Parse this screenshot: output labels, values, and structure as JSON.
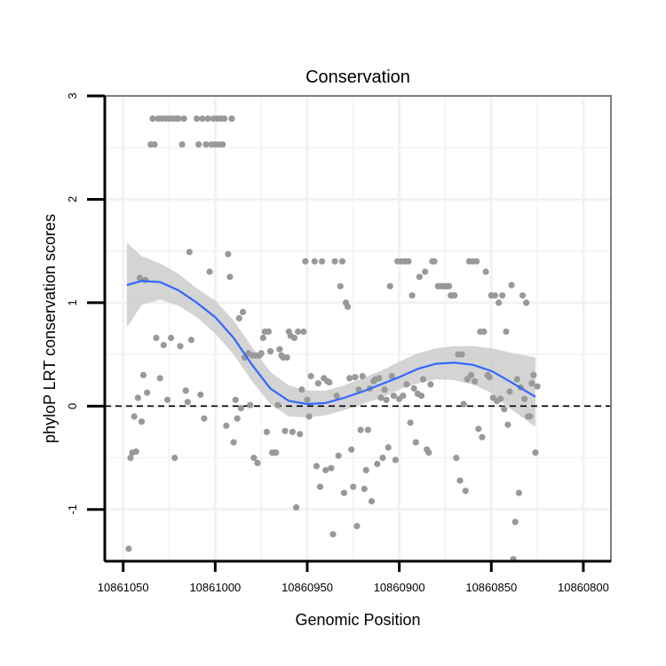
{
  "chart_data": {
    "type": "scatter",
    "title": "Conservation",
    "xlabel": "Genomic Position",
    "ylabel": "phyloP LRT conservation scores",
    "x_reversed": true,
    "xlim": [
      10861060,
      10860785
    ],
    "ylim": [
      -1.5,
      3
    ],
    "x_ticks": [
      10861050,
      10861000,
      10860950,
      10860900,
      10860850,
      10860800
    ],
    "x_tick_labels": [
      "10861050",
      "10861000",
      "10860950",
      "10860900",
      "10860850",
      "10860800"
    ],
    "y_ticks": [
      -1,
      0,
      1,
      2,
      3
    ],
    "y_tick_labels": [
      "-1",
      "0",
      "1",
      "2",
      "3"
    ],
    "reference_line": {
      "y": 0,
      "style": "dashed"
    },
    "grid": true,
    "colors": {
      "points": "#999999",
      "smooth": "#3366ff",
      "band": "#cccccc",
      "panel_border": "#7f7f7f",
      "grid": "#f2f2f2"
    },
    "points": [
      [
        10861047,
        -1.38
      ],
      [
        10861046,
        -0.5
      ],
      [
        10861045,
        -0.45
      ],
      [
        10861044,
        -0.1
      ],
      [
        10861043,
        -0.44
      ],
      [
        10861042,
        0.08
      ],
      [
        10861041,
        1.24
      ],
      [
        10861040,
        -0.15
      ],
      [
        10861039,
        0.3
      ],
      [
        10861038,
        1.22
      ],
      [
        10861037,
        0.13
      ],
      [
        10861035,
        2.53
      ],
      [
        10861034,
        2.78
      ],
      [
        10861033,
        2.53
      ],
      [
        10861032,
        0.66
      ],
      [
        10861031,
        2.78
      ],
      [
        10861030,
        0.27
      ],
      [
        10861029,
        2.78
      ],
      [
        10861028,
        0.59
      ],
      [
        10861027,
        2.78
      ],
      [
        10861026,
        0.06
      ],
      [
        10861025,
        2.78
      ],
      [
        10861024,
        0.66
      ],
      [
        10861023,
        2.78
      ],
      [
        10861022,
        -0.5
      ],
      [
        10861021,
        2.78
      ],
      [
        10861020,
        2.78
      ],
      [
        10861019,
        0.58
      ],
      [
        10861018,
        2.53
      ],
      [
        10861017,
        2.78
      ],
      [
        10861016,
        0.15
      ],
      [
        10861015,
        0.04
      ],
      [
        10861014,
        1.49
      ],
      [
        10861013,
        0.64
      ],
      [
        10861010,
        2.78
      ],
      [
        10861009,
        2.53
      ],
      [
        10861008,
        0.11
      ],
      [
        10861007,
        2.78
      ],
      [
        10861006,
        -0.12
      ],
      [
        10861005,
        2.53
      ],
      [
        10861004,
        2.78
      ],
      [
        10861003,
        1.3
      ],
      [
        10861002,
        2.53
      ],
      [
        10861001,
        2.78
      ],
      [
        10861000,
        2.53
      ],
      [
        10860999,
        2.78
      ],
      [
        10860998,
        2.53
      ],
      [
        10860997,
        2.78
      ],
      [
        10860996,
        2.53
      ],
      [
        10860995,
        2.78
      ],
      [
        10860994,
        -0.19
      ],
      [
        10860993,
        1.47
      ],
      [
        10860992,
        1.25
      ],
      [
        10860991,
        2.78
      ],
      [
        10860990,
        -0.35
      ],
      [
        10860989,
        0.06
      ],
      [
        10860988,
        -0.12
      ],
      [
        10860987,
        0.85
      ],
      [
        10860986,
        -0.02
      ],
      [
        10860985,
        0.91
      ],
      [
        10860984,
        0.47
      ],
      [
        10860982,
        0.51
      ],
      [
        10860981,
        0.01
      ],
      [
        10860980,
        0.49
      ],
      [
        10860979,
        -0.5
      ],
      [
        10860978,
        0.49
      ],
      [
        10860977,
        -0.55
      ],
      [
        10860976,
        0.49
      ],
      [
        10860975,
        0.51
      ],
      [
        10860974,
        0.66
      ],
      [
        10860973,
        0.72
      ],
      [
        10860972,
        -0.25
      ],
      [
        10860971,
        0.72
      ],
      [
        10860970,
        0.53
      ],
      [
        10860969,
        -0.45
      ],
      [
        10860968,
        -0.45
      ],
      [
        10860967,
        -0.45
      ],
      [
        10860966,
        0.01
      ],
      [
        10860965,
        0.55
      ],
      [
        10860964,
        0.49
      ],
      [
        10860963,
        0.47
      ],
      [
        10860962,
        -0.24
      ],
      [
        10860961,
        0.47
      ],
      [
        10860960,
        0.72
      ],
      [
        10860959,
        0.68
      ],
      [
        10860958,
        -0.25
      ],
      [
        10860957,
        0.66
      ],
      [
        10860956,
        -0.98
      ],
      [
        10860955,
        0.72
      ],
      [
        10860954,
        -0.27
      ],
      [
        10860953,
        0.16
      ],
      [
        10860952,
        0.72
      ],
      [
        10860951,
        1.4
      ],
      [
        10860950,
        0.06
      ],
      [
        10860949,
        -0.1
      ],
      [
        10860948,
        0.29
      ],
      [
        10860946,
        1.4
      ],
      [
        10860945,
        -0.58
      ],
      [
        10860944,
        0.22
      ],
      [
        10860943,
        -0.78
      ],
      [
        10860942,
        1.4
      ],
      [
        10860941,
        0.27
      ],
      [
        10860940,
        -0.62
      ],
      [
        10860939,
        0.24
      ],
      [
        10860938,
        0.23
      ],
      [
        10860937,
        -0.6
      ],
      [
        10860936,
        -1.24
      ],
      [
        10860935,
        1.4
      ],
      [
        10860934,
        0.1
      ],
      [
        10860933,
        -0.48
      ],
      [
        10860932,
        1.16
      ],
      [
        10860931,
        1.4
      ],
      [
        10860930,
        -0.84
      ],
      [
        10860929,
        1.0
      ],
      [
        10860928,
        0.96
      ],
      [
        10860927,
        0.27
      ],
      [
        10860926,
        -0.42
      ],
      [
        10860925,
        -0.78
      ],
      [
        10860924,
        0.28
      ],
      [
        10860923,
        -1.16
      ],
      [
        10860922,
        0.16
      ],
      [
        10860921,
        -0.23
      ],
      [
        10860920,
        0.29
      ],
      [
        10860919,
        -0.8
      ],
      [
        10860918,
        -0.62
      ],
      [
        10860917,
        -0.23
      ],
      [
        10860916,
        0.17
      ],
      [
        10860915,
        -0.92
      ],
      [
        10860914,
        0.24
      ],
      [
        10860913,
        0.26
      ],
      [
        10860912,
        -0.56
      ],
      [
        10860911,
        0.27
      ],
      [
        10860910,
        0.08
      ],
      [
        10860909,
        -0.5
      ],
      [
        10860908,
        0.16
      ],
      [
        10860907,
        0.06
      ],
      [
        10860906,
        -0.4
      ],
      [
        10860905,
        1.16
      ],
      [
        10860904,
        0.29
      ],
      [
        10860903,
        0.1
      ],
      [
        10860902,
        -0.52
      ],
      [
        10860901,
        1.4
      ],
      [
        10860900,
        0.07
      ],
      [
        10860899,
        1.4
      ],
      [
        10860898,
        0.1
      ],
      [
        10860897,
        1.4
      ],
      [
        10860896,
        0.21
      ],
      [
        10860895,
        1.4
      ],
      [
        10860894,
        -0.16
      ],
      [
        10860893,
        1.07
      ],
      [
        10860892,
        0.17
      ],
      [
        10860891,
        -0.35
      ],
      [
        10860890,
        0.12
      ],
      [
        10860889,
        1.25
      ],
      [
        10860888,
        0.1
      ],
      [
        10860887,
        0.26
      ],
      [
        10860886,
        1.3
      ],
      [
        10860885,
        -0.42
      ],
      [
        10860884,
        -0.45
      ],
      [
        10860883,
        0.21
      ],
      [
        10860882,
        1.4
      ],
      [
        10860881,
        1.4
      ],
      [
        10860879,
        1.16
      ],
      [
        10860878,
        1.16
      ],
      [
        10860877,
        1.16
      ],
      [
        10860876,
        1.16
      ],
      [
        10860875,
        1.16
      ],
      [
        10860874,
        1.16
      ],
      [
        10860873,
        1.16
      ],
      [
        10860872,
        1.07
      ],
      [
        10860871,
        1.07
      ],
      [
        10860870,
        1.07
      ],
      [
        10860869,
        -0.5
      ],
      [
        10860868,
        0.5
      ],
      [
        10860867,
        -0.72
      ],
      [
        10860866,
        0.5
      ],
      [
        10860865,
        0.02
      ],
      [
        10860864,
        -0.82
      ],
      [
        10860863,
        0.26
      ],
      [
        10860862,
        1.4
      ],
      [
        10860861,
        0.3
      ],
      [
        10860860,
        1.4
      ],
      [
        10860859,
        0.24
      ],
      [
        10860858,
        1.4
      ],
      [
        10860857,
        -0.22
      ],
      [
        10860856,
        0.72
      ],
      [
        10860855,
        -0.3
      ],
      [
        10860854,
        0.72
      ],
      [
        10860853,
        1.3
      ],
      [
        10860852,
        0.3
      ],
      [
        10860851,
        0.28
      ],
      [
        10860850,
        1.07
      ],
      [
        10860849,
        0.08
      ],
      [
        10860848,
        1.07
      ],
      [
        10860847,
        0.05
      ],
      [
        10860846,
        1.0
      ],
      [
        10860845,
        0.07
      ],
      [
        10860844,
        1.07
      ],
      [
        10860843,
        -0.03
      ],
      [
        10860842,
        0.72
      ],
      [
        10860841,
        -0.18
      ],
      [
        10860840,
        0.14
      ],
      [
        10860839,
        1.17
      ],
      [
        10860838,
        -1.48
      ],
      [
        10860837,
        -1.12
      ],
      [
        10860836,
        0.26
      ],
      [
        10860835,
        -0.84
      ],
      [
        10860834,
        0.18
      ],
      [
        10860833,
        1.07
      ],
      [
        10860832,
        0.07
      ],
      [
        10860831,
        1.0
      ],
      [
        10860830,
        -0.1
      ],
      [
        10860829,
        -0.1
      ],
      [
        10860828,
        0.22
      ],
      [
        10860827,
        0.3
      ],
      [
        10860826,
        -0.45
      ],
      [
        10860825,
        0.19
      ]
    ],
    "smooth_curve": [
      [
        10861048,
        1.17
      ],
      [
        10861040,
        1.21
      ],
      [
        10861030,
        1.2
      ],
      [
        10861020,
        1.12
      ],
      [
        10861010,
        1.0
      ],
      [
        10861000,
        0.86
      ],
      [
        10860990,
        0.66
      ],
      [
        10860980,
        0.4
      ],
      [
        10860970,
        0.17
      ],
      [
        10860960,
        0.05
      ],
      [
        10860950,
        0.02
      ],
      [
        10860940,
        0.03
      ],
      [
        10860930,
        0.08
      ],
      [
        10860920,
        0.14
      ],
      [
        10860910,
        0.21
      ],
      [
        10860900,
        0.28
      ],
      [
        10860890,
        0.36
      ],
      [
        10860880,
        0.41
      ],
      [
        10860870,
        0.42
      ],
      [
        10860860,
        0.4
      ],
      [
        10860850,
        0.34
      ],
      [
        10860840,
        0.24
      ],
      [
        10860826,
        0.09
      ]
    ],
    "confidence_band": [
      [
        10861048,
        0.76,
        1.58
      ],
      [
        10861040,
        0.98,
        1.45
      ],
      [
        10861030,
        1.03,
        1.38
      ],
      [
        10861020,
        0.97,
        1.28
      ],
      [
        10861010,
        0.86,
        1.14
      ],
      [
        10861000,
        0.7,
        1.02
      ],
      [
        10860990,
        0.5,
        0.83
      ],
      [
        10860980,
        0.24,
        0.57
      ],
      [
        10860970,
        0.02,
        0.33
      ],
      [
        10860960,
        -0.1,
        0.2
      ],
      [
        10860950,
        -0.11,
        0.15
      ],
      [
        10860940,
        -0.09,
        0.15
      ],
      [
        10860930,
        -0.04,
        0.2
      ],
      [
        10860920,
        0.02,
        0.27
      ],
      [
        10860910,
        0.08,
        0.34
      ],
      [
        10860900,
        0.16,
        0.43
      ],
      [
        10860890,
        0.22,
        0.51
      ],
      [
        10860880,
        0.26,
        0.56
      ],
      [
        10860870,
        0.25,
        0.58
      ],
      [
        10860860,
        0.21,
        0.58
      ],
      [
        10860850,
        0.13,
        0.56
      ],
      [
        10860840,
        -0.02,
        0.52
      ],
      [
        10860826,
        -0.2,
        0.47
      ]
    ]
  }
}
